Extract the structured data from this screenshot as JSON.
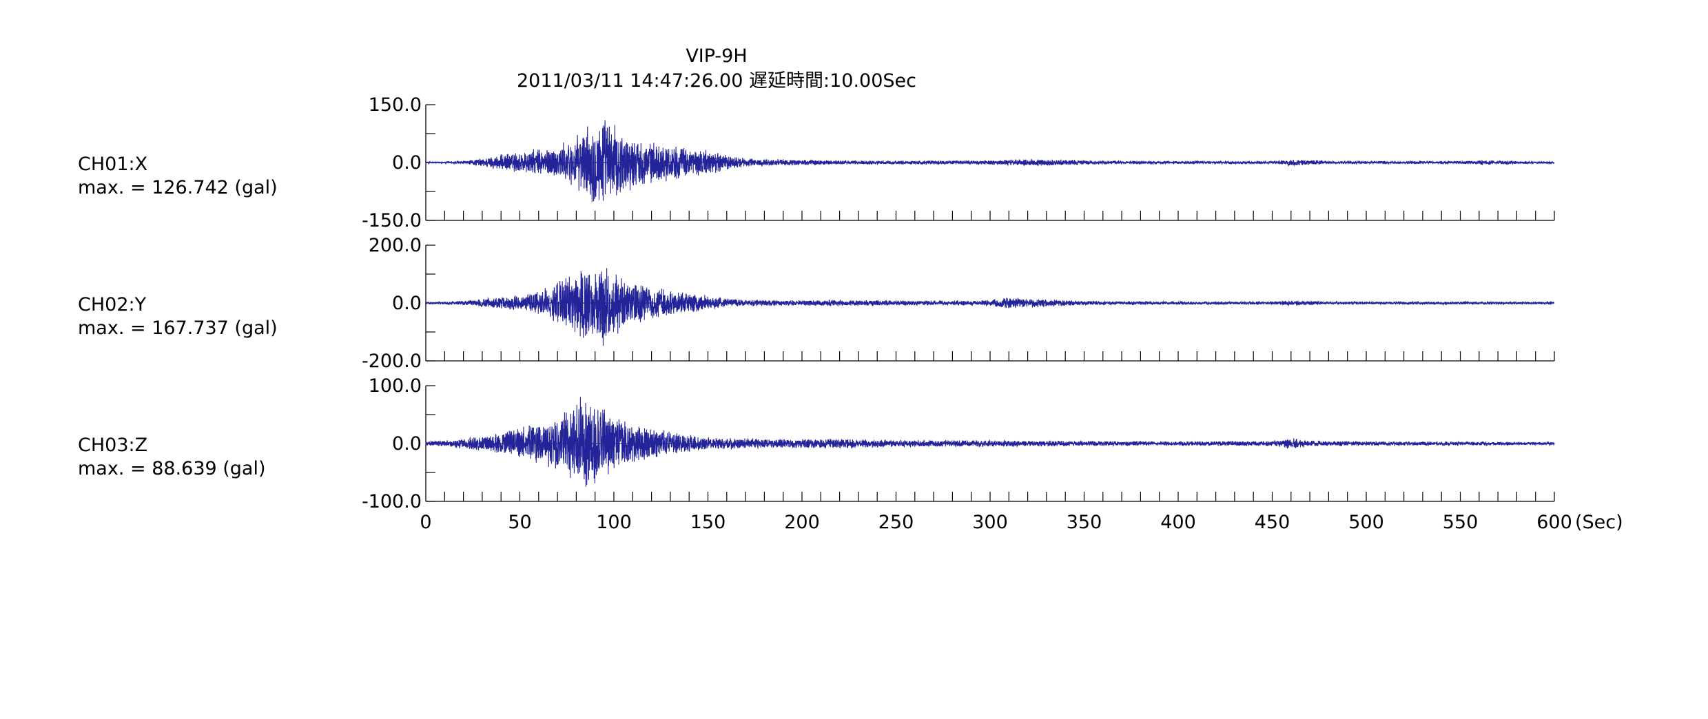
{
  "chart_data": {
    "type": "line",
    "station": "VIP-9H",
    "subtitle": "2011/03/11 14:47:26.00 遅延時間:10.00Sec",
    "x_ticks": [
      0,
      50,
      100,
      150,
      200,
      250,
      300,
      350,
      400,
      450,
      500,
      550,
      600
    ],
    "x_unit": "(Sec)",
    "xlim": [
      0,
      600
    ],
    "x_minor_step": 10,
    "grid": false,
    "series": [
      {
        "name": "CH01:X",
        "max_label": "max. = 126.742 (gal)",
        "max": 126.742,
        "ylim": [
          -150,
          150
        ],
        "y_tick_labels": [
          "150.0",
          "0.0",
          "-150.0"
        ],
        "color": "#24249a",
        "envelope": [
          [
            0,
            2
          ],
          [
            20,
            4
          ],
          [
            30,
            12
          ],
          [
            40,
            22
          ],
          [
            50,
            30
          ],
          [
            60,
            38
          ],
          [
            70,
            45
          ],
          [
            80,
            70
          ],
          [
            85,
            95
          ],
          [
            90,
            120
          ],
          [
            95,
            126.742
          ],
          [
            100,
            105
          ],
          [
            110,
            70
          ],
          [
            120,
            55
          ],
          [
            130,
            50
          ],
          [
            140,
            40
          ],
          [
            150,
            35
          ],
          [
            160,
            22
          ],
          [
            170,
            12
          ],
          [
            180,
            10
          ],
          [
            190,
            9
          ],
          [
            200,
            8
          ],
          [
            220,
            6
          ],
          [
            250,
            5
          ],
          [
            300,
            6
          ],
          [
            320,
            10
          ],
          [
            340,
            8
          ],
          [
            360,
            5
          ],
          [
            400,
            4
          ],
          [
            450,
            4
          ],
          [
            460,
            9
          ],
          [
            470,
            8
          ],
          [
            480,
            4
          ],
          [
            550,
            4
          ],
          [
            560,
            6
          ],
          [
            600,
            3
          ]
        ]
      },
      {
        "name": "CH02:Y",
        "max_label": "max. = 167.737 (gal)",
        "max": 167.737,
        "ylim": [
          -200,
          200
        ],
        "y_tick_labels": [
          "200.0",
          "0.0",
          "-200.0"
        ],
        "color": "#24249a",
        "envelope": [
          [
            0,
            3
          ],
          [
            20,
            8
          ],
          [
            30,
            15
          ],
          [
            40,
            22
          ],
          [
            50,
            30
          ],
          [
            60,
            45
          ],
          [
            70,
            80
          ],
          [
            80,
            110
          ],
          [
            85,
            150
          ],
          [
            90,
            130
          ],
          [
            95,
            167.737
          ],
          [
            100,
            120
          ],
          [
            110,
            80
          ],
          [
            120,
            60
          ],
          [
            130,
            50
          ],
          [
            140,
            35
          ],
          [
            150,
            28
          ],
          [
            160,
            16
          ],
          [
            180,
            12
          ],
          [
            200,
            10
          ],
          [
            220,
            12
          ],
          [
            250,
            10
          ],
          [
            280,
            8
          ],
          [
            300,
            12
          ],
          [
            310,
            22
          ],
          [
            330,
            14
          ],
          [
            350,
            8
          ],
          [
            400,
            6
          ],
          [
            450,
            6
          ],
          [
            460,
            10
          ],
          [
            470,
            8
          ],
          [
            480,
            5
          ],
          [
            550,
            5
          ],
          [
            600,
            4
          ]
        ]
      },
      {
        "name": "CH03:Z",
        "max_label": "max. = 88.639 (gal)",
        "max": 88.639,
        "ylim": [
          -100,
          100
        ],
        "y_tick_labels": [
          "100.0",
          "0.0",
          "-100.0"
        ],
        "color": "#24249a",
        "envelope": [
          [
            0,
            4
          ],
          [
            10,
            6
          ],
          [
            20,
            10
          ],
          [
            30,
            14
          ],
          [
            40,
            20
          ],
          [
            50,
            28
          ],
          [
            60,
            38
          ],
          [
            70,
            50
          ],
          [
            75,
            62
          ],
          [
            80,
            80
          ],
          [
            85,
            88.639
          ],
          [
            90,
            80
          ],
          [
            95,
            65
          ],
          [
            100,
            50
          ],
          [
            110,
            35
          ],
          [
            120,
            28
          ],
          [
            130,
            22
          ],
          [
            140,
            16
          ],
          [
            150,
            12
          ],
          [
            170,
            10
          ],
          [
            200,
            8
          ],
          [
            220,
            9
          ],
          [
            250,
            7
          ],
          [
            300,
            6
          ],
          [
            350,
            5
          ],
          [
            400,
            4
          ],
          [
            450,
            5
          ],
          [
            460,
            10
          ],
          [
            470,
            6
          ],
          [
            500,
            4
          ],
          [
            600,
            3
          ]
        ]
      }
    ]
  }
}
